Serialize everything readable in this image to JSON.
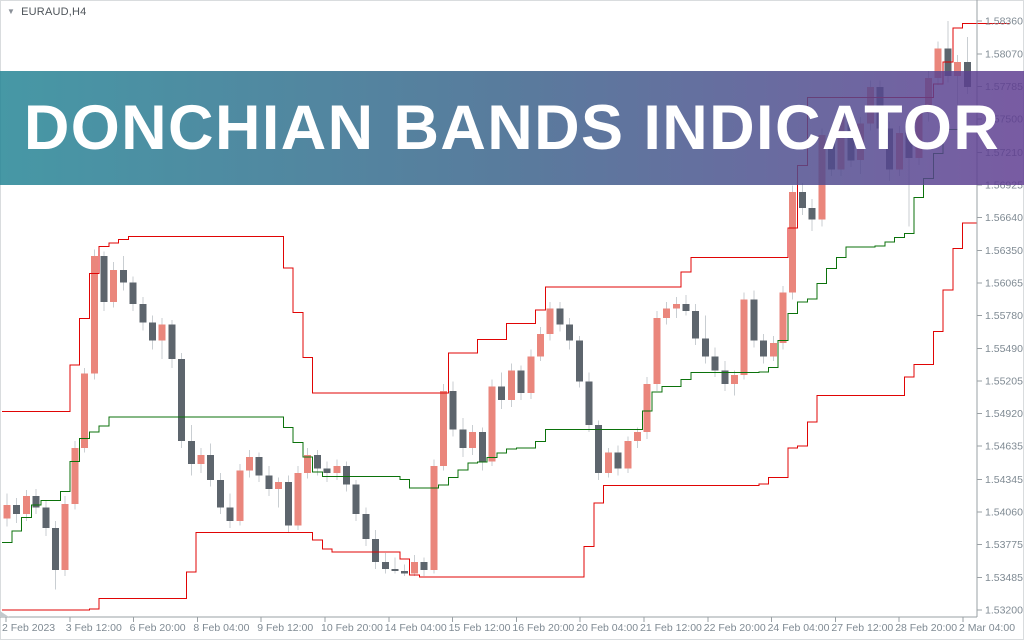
{
  "app": {
    "symbol_label": "EURAUD,H4",
    "dropdown_icon": "symbol-dropdown"
  },
  "banner": {
    "text": "DONCHIAN BANDS INDICATOR",
    "gradient": [
      "rgba(35,132,148,0.84)",
      "rgba(57,98,138,0.84)",
      "rgba(95,60,145,0.84)"
    ]
  },
  "axes": {
    "line_color": "#9aa0a4",
    "label_color": "#7f8a93",
    "tick_font_px": 10.5
  },
  "chart_data": {
    "type": "candlestick",
    "title": "Donchian Bands Indicator on EURAUD H4",
    "xlabel": "",
    "ylabel": "",
    "ylim": [
      1.532,
      1.5836
    ],
    "grid": "off",
    "legend": "none",
    "x_tick_labels": [
      "2 Feb 2023",
      "3 Feb 12:00",
      "6 Feb 20:00",
      "8 Feb 04:00",
      "9 Feb 12:00",
      "10 Feb 20:00",
      "14 Feb 04:00",
      "15 Feb 12:00",
      "16 Feb 20:00",
      "20 Feb 04:00",
      "21 Feb 12:00",
      "22 Feb 20:00",
      "24 Feb 04:00",
      "27 Feb 12:00",
      "28 Feb 20:00",
      "2 Mar 04:00"
    ],
    "y_tick_labels": [
      "1.58360",
      "1.58070",
      "1.57785",
      "1.57500",
      "1.57210",
      "1.56925",
      "1.56640",
      "1.56350",
      "1.56065",
      "1.55780",
      "1.55490",
      "1.55205",
      "1.54920",
      "1.54635",
      "1.54345",
      "1.54060",
      "1.53775",
      "1.53485",
      "1.53200"
    ],
    "colors": {
      "up": "#ea867c",
      "down": "#5d656d",
      "wick": "#c9ced2",
      "upper_band": "#e00505",
      "middle_band": "#0b720b",
      "lower_band": "#e00505"
    },
    "candles": [
      [
        1.54,
        1.5422,
        1.5393,
        1.5412
      ],
      [
        1.5412,
        1.5418,
        1.5396,
        1.5404
      ],
      [
        1.5404,
        1.5425,
        1.5398,
        1.542
      ],
      [
        1.542,
        1.5426,
        1.5404,
        1.541
      ],
      [
        1.541,
        1.5416,
        1.5385,
        1.5392
      ],
      [
        1.5392,
        1.5398,
        1.5338,
        1.5355
      ],
      [
        1.5355,
        1.542,
        1.535,
        1.5413
      ],
      [
        1.5413,
        1.5468,
        1.5408,
        1.5462
      ],
      [
        1.5462,
        1.5532,
        1.5458,
        1.5527
      ],
      [
        1.5527,
        1.5636,
        1.5522,
        1.563
      ],
      [
        1.563,
        1.5634,
        1.5582,
        1.559
      ],
      [
        1.559,
        1.5625,
        1.5585,
        1.5618
      ],
      [
        1.5618,
        1.563,
        1.56,
        1.5607
      ],
      [
        1.5607,
        1.5612,
        1.5582,
        1.5588
      ],
      [
        1.5588,
        1.5594,
        1.5565,
        1.5572
      ],
      [
        1.5572,
        1.5578,
        1.5548,
        1.5556
      ],
      [
        1.5556,
        1.5576,
        1.554,
        1.557
      ],
      [
        1.557,
        1.5574,
        1.5532,
        1.554
      ],
      [
        1.554,
        1.5545,
        1.5462,
        1.5468
      ],
      [
        1.5468,
        1.5482,
        1.5438,
        1.5448
      ],
      [
        1.5448,
        1.5462,
        1.544,
        1.5456
      ],
      [
        1.5456,
        1.5466,
        1.5428,
        1.5434
      ],
      [
        1.5434,
        1.544,
        1.5404,
        1.541
      ],
      [
        1.541,
        1.5422,
        1.5392,
        1.5398
      ],
      [
        1.5398,
        1.5448,
        1.5394,
        1.5442
      ],
      [
        1.5442,
        1.546,
        1.5436,
        1.5454
      ],
      [
        1.5454,
        1.5458,
        1.5432,
        1.5438
      ],
      [
        1.5438,
        1.5446,
        1.542,
        1.5426
      ],
      [
        1.5426,
        1.5436,
        1.541,
        1.5432
      ],
      [
        1.5432,
        1.5438,
        1.5388,
        1.5394
      ],
      [
        1.5394,
        1.5446,
        1.539,
        1.544
      ],
      [
        1.544,
        1.5462,
        1.5435,
        1.5456
      ],
      [
        1.5456,
        1.546,
        1.5438,
        1.5444
      ],
      [
        1.5444,
        1.545,
        1.5432,
        1.544
      ],
      [
        1.544,
        1.5452,
        1.5434,
        1.5446
      ],
      [
        1.5446,
        1.545,
        1.5424,
        1.543
      ],
      [
        1.543,
        1.5434,
        1.5398,
        1.5404
      ],
      [
        1.5404,
        1.541,
        1.5376,
        1.5382
      ],
      [
        1.5382,
        1.539,
        1.5356,
        1.5362
      ],
      [
        1.5362,
        1.537,
        1.5352,
        1.5356
      ],
      [
        1.5356,
        1.5366,
        1.5352,
        1.5354
      ],
      [
        1.5354,
        1.536,
        1.535,
        1.5352
      ],
      [
        1.5352,
        1.5368,
        1.535,
        1.5362
      ],
      [
        1.5362,
        1.5366,
        1.535,
        1.5355
      ],
      [
        1.5355,
        1.5452,
        1.5352,
        1.5446
      ],
      [
        1.5446,
        1.5518,
        1.5442,
        1.5512
      ],
      [
        1.5512,
        1.552,
        1.5472,
        1.5478
      ],
      [
        1.5478,
        1.5488,
        1.5454,
        1.5462
      ],
      [
        1.5462,
        1.5482,
        1.5456,
        1.5476
      ],
      [
        1.5476,
        1.548,
        1.5442,
        1.545
      ],
      [
        1.545,
        1.5522,
        1.5446,
        1.5516
      ],
      [
        1.5516,
        1.5528,
        1.5496,
        1.5504
      ],
      [
        1.5504,
        1.5536,
        1.5498,
        1.553
      ],
      [
        1.553,
        1.5534,
        1.5504,
        1.551
      ],
      [
        1.551,
        1.5548,
        1.5505,
        1.5542
      ],
      [
        1.5542,
        1.5568,
        1.5538,
        1.5562
      ],
      [
        1.5562,
        1.559,
        1.5556,
        1.5584
      ],
      [
        1.5584,
        1.559,
        1.5564,
        1.557
      ],
      [
        1.557,
        1.5576,
        1.5548,
        1.5556
      ],
      [
        1.5556,
        1.556,
        1.5515,
        1.552
      ],
      [
        1.552,
        1.5528,
        1.5476,
        1.5482
      ],
      [
        1.5482,
        1.5486,
        1.5434,
        1.544
      ],
      [
        1.544,
        1.5462,
        1.5436,
        1.5458
      ],
      [
        1.5458,
        1.5464,
        1.5438,
        1.5444
      ],
      [
        1.5444,
        1.5472,
        1.544,
        1.5468
      ],
      [
        1.5468,
        1.548,
        1.5462,
        1.5476
      ],
      [
        1.5476,
        1.5524,
        1.547,
        1.5518
      ],
      [
        1.5518,
        1.5582,
        1.5512,
        1.5576
      ],
      [
        1.5576,
        1.559,
        1.557,
        1.5584
      ],
      [
        1.5584,
        1.5594,
        1.5576,
        1.5588
      ],
      [
        1.5588,
        1.5596,
        1.5578,
        1.5582
      ],
      [
        1.5582,
        1.5588,
        1.5552,
        1.5558
      ],
      [
        1.5558,
        1.5578,
        1.5536,
        1.5542
      ],
      [
        1.5542,
        1.555,
        1.5524,
        1.553
      ],
      [
        1.553,
        1.5538,
        1.5512,
        1.5518
      ],
      [
        1.5518,
        1.553,
        1.5508,
        1.5526
      ],
      [
        1.5526,
        1.5598,
        1.5522,
        1.5592
      ],
      [
        1.5592,
        1.56,
        1.555,
        1.5556
      ],
      [
        1.5556,
        1.5562,
        1.5536,
        1.5542
      ],
      [
        1.5542,
        1.556,
        1.5538,
        1.5554
      ],
      [
        1.5554,
        1.5604,
        1.5548,
        1.5598
      ],
      [
        1.5598,
        1.5692,
        1.5592,
        1.5686
      ],
      [
        1.5686,
        1.5694,
        1.5666,
        1.5672
      ],
      [
        1.5672,
        1.568,
        1.5652,
        1.5662
      ],
      [
        1.5662,
        1.5742,
        1.5656,
        1.5736
      ],
      [
        1.5736,
        1.5744,
        1.57,
        1.5706
      ],
      [
        1.5706,
        1.576,
        1.57,
        1.5752
      ],
      [
        1.5752,
        1.5758,
        1.5708,
        1.5714
      ],
      [
        1.5714,
        1.5752,
        1.5702,
        1.5746
      ],
      [
        1.5746,
        1.5784,
        1.574,
        1.5778
      ],
      [
        1.5778,
        1.5784,
        1.5736,
        1.5742
      ],
      [
        1.5742,
        1.5748,
        1.5696,
        1.5706
      ],
      [
        1.5706,
        1.5744,
        1.57,
        1.5738
      ],
      [
        1.5738,
        1.5744,
        1.5656,
        1.5716
      ],
      [
        1.5716,
        1.5762,
        1.571,
        1.5756
      ],
      [
        1.5756,
        1.5792,
        1.5748,
        1.5786
      ],
      [
        1.5786,
        1.5818,
        1.578,
        1.5812
      ],
      [
        1.5812,
        1.5836,
        1.5782,
        1.5788
      ],
      [
        1.5788,
        1.5806,
        1.576,
        1.58
      ],
      [
        1.58,
        1.5822,
        1.5772,
        1.5778
      ]
    ],
    "bands": {
      "upper": [
        [
          0,
          1.5494
        ],
        [
          6,
          1.5494
        ],
        [
          8.6,
          1.56
        ],
        [
          9.6,
          1.5637
        ],
        [
          12.7,
          1.5647
        ],
        [
          28.3,
          1.5647
        ],
        [
          31.8,
          1.551
        ],
        [
          45.1,
          1.551
        ],
        [
          45.7,
          1.5545
        ],
        [
          48.2,
          1.5545
        ],
        [
          49,
          1.5557
        ],
        [
          51.1,
          1.5557
        ],
        [
          51.9,
          1.5571
        ],
        [
          54.6,
          1.5571
        ],
        [
          55.7,
          1.5603
        ],
        [
          69.6,
          1.5603
        ],
        [
          70.4,
          1.5629
        ],
        [
          80,
          1.5629
        ],
        [
          81.4,
          1.5665
        ],
        [
          82.8,
          1.5769
        ],
        [
          95.4,
          1.5769
        ],
        [
          97,
          1.58
        ],
        [
          97.4,
          1.5825
        ],
        [
          98.5,
          1.5834
        ],
        [
          103.4,
          1.5834
        ]
      ],
      "middle": [
        [
          0,
          1.5379
        ],
        [
          1.1,
          1.539
        ],
        [
          2.4,
          1.5406
        ],
        [
          3.4,
          1.5416
        ],
        [
          5.7,
          1.5416
        ],
        [
          7.5,
          1.5463
        ],
        [
          8.4,
          1.5476
        ],
        [
          9.6,
          1.5476
        ],
        [
          10.6,
          1.5489
        ],
        [
          28.3,
          1.5489
        ],
        [
          32.3,
          1.5437
        ],
        [
          40.7,
          1.5437
        ],
        [
          41.9,
          1.5427
        ],
        [
          44.6,
          1.5427
        ],
        [
          48,
          1.5449
        ],
        [
          48.8,
          1.5449
        ],
        [
          52.2,
          1.5462
        ],
        [
          54.6,
          1.5462
        ],
        [
          55.7,
          1.5478
        ],
        [
          65,
          1.5478
        ],
        [
          67.3,
          1.5516
        ],
        [
          69.6,
          1.5516
        ],
        [
          70.4,
          1.5528
        ],
        [
          77.9,
          1.5528
        ],
        [
          79.2,
          1.5533
        ],
        [
          80.7,
          1.5576
        ],
        [
          81.8,
          1.559
        ],
        [
          82.8,
          1.559
        ],
        [
          84.9,
          1.5618
        ],
        [
          86.9,
          1.5638
        ],
        [
          89.7,
          1.5638
        ],
        [
          93.1,
          1.565
        ],
        [
          94.1,
          1.5685
        ],
        [
          95.5,
          1.5705
        ],
        [
          96.7,
          1.5741
        ],
        [
          100,
          1.5741
        ]
      ],
      "lower": [
        [
          0,
          1.532
        ],
        [
          8.9,
          1.532
        ],
        [
          9.9,
          1.533
        ],
        [
          18.6,
          1.533
        ],
        [
          19.6,
          1.5388
        ],
        [
          31.2,
          1.5388
        ],
        [
          33.3,
          1.5371
        ],
        [
          40.7,
          1.5371
        ],
        [
          41.6,
          1.5352
        ],
        [
          42.6,
          1.5349
        ],
        [
          59.3,
          1.5349
        ],
        [
          61.4,
          1.5429
        ],
        [
          77.8,
          1.5429
        ],
        [
          78.7,
          1.5436
        ],
        [
          80.4,
          1.5436
        ],
        [
          81,
          1.5462
        ],
        [
          82.3,
          1.5464
        ],
        [
          83.8,
          1.5508
        ],
        [
          92.1,
          1.5508
        ],
        [
          93.6,
          1.5535
        ],
        [
          95.2,
          1.5535
        ],
        [
          98.2,
          1.5644
        ],
        [
          98.8,
          1.5659
        ],
        [
          100,
          1.5659
        ]
      ]
    }
  }
}
